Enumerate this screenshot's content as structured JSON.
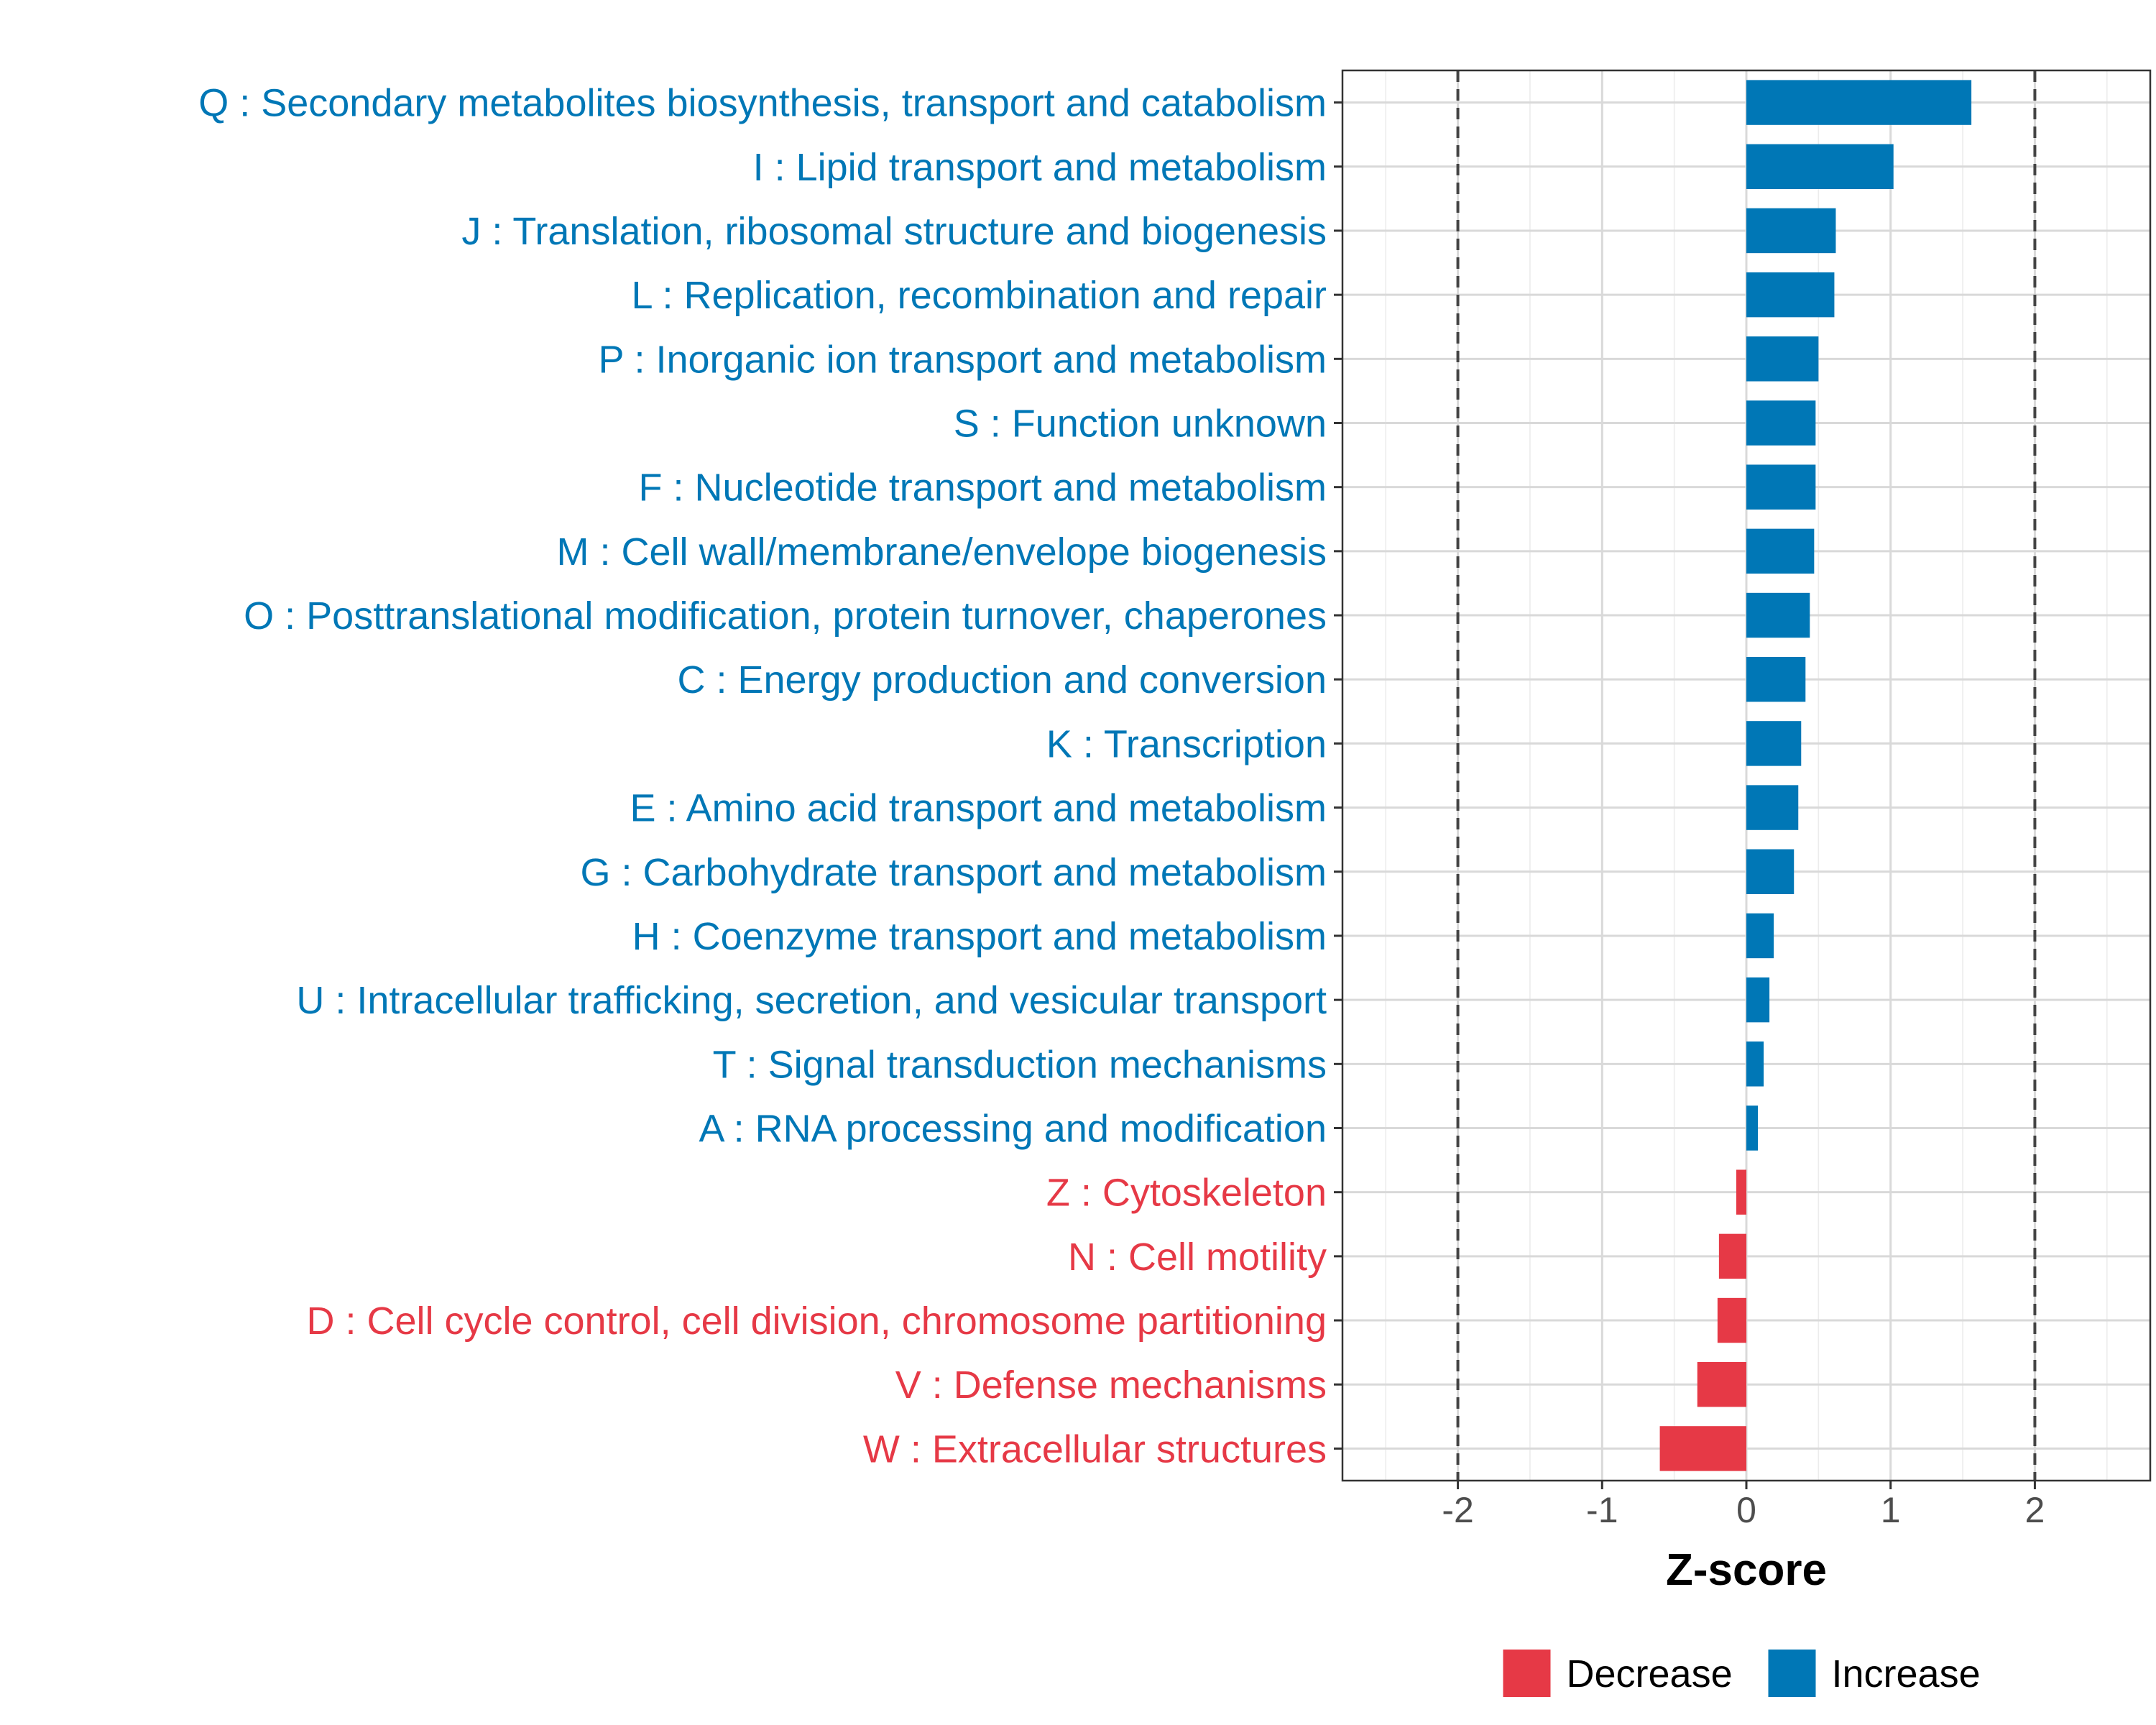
{
  "chart_data": {
    "type": "bar",
    "orientation": "horizontal",
    "title": "",
    "xlabel": "Z-score",
    "ylabel": "",
    "xlim": [
      -2.8,
      2.8
    ],
    "xticks": [
      -2,
      -1,
      0,
      1,
      2
    ],
    "xtick_labels": [
      "-2",
      "-1",
      "0",
      "1",
      "2"
    ],
    "reference_lines": [
      -2,
      2
    ],
    "grid": true,
    "colors": {
      "Decrease": "#e63946",
      "Increase": "#0077b6"
    },
    "categories": [
      "Q : Secondary metabolites biosynthesis, transport and catabolism",
      "I : Lipid transport and metabolism",
      "J : Translation, ribosomal structure and biogenesis",
      "L : Replication, recombination and repair",
      "P : Inorganic ion transport and metabolism",
      "S : Function unknown",
      "F : Nucleotide transport and metabolism",
      "M : Cell wall/membrane/envelope biogenesis",
      "O : Posttranslational modification, protein turnover, chaperones",
      "C : Energy production and conversion",
      "K : Transcription",
      "E : Amino acid transport and metabolism",
      "G : Carbohydrate transport and metabolism",
      "H : Coenzyme transport and metabolism",
      "U : Intracellular trafficking, secretion, and vesicular transport",
      "T : Signal transduction mechanisms",
      "A : RNA processing and modification",
      "Z : Cytoskeleton",
      "N : Cell motility",
      "D : Cell cycle control, cell division, chromosome partitioning",
      "V : Defense mechanisms",
      "W : Extracellular structures"
    ],
    "values": [
      1.56,
      1.02,
      0.62,
      0.61,
      0.5,
      0.48,
      0.48,
      0.47,
      0.44,
      0.41,
      0.38,
      0.36,
      0.33,
      0.19,
      0.16,
      0.12,
      0.08,
      -0.07,
      -0.19,
      -0.2,
      -0.34,
      -0.6
    ],
    "groups": [
      "Increase",
      "Increase",
      "Increase",
      "Increase",
      "Increase",
      "Increase",
      "Increase",
      "Increase",
      "Increase",
      "Increase",
      "Increase",
      "Increase",
      "Increase",
      "Increase",
      "Increase",
      "Increase",
      "Increase",
      "Decrease",
      "Decrease",
      "Decrease",
      "Decrease",
      "Decrease"
    ],
    "legend": {
      "position": "bottom",
      "items": [
        {
          "label": "Decrease",
          "color": "#e63946"
        },
        {
          "label": "Increase",
          "color": "#0077b6"
        }
      ]
    }
  }
}
